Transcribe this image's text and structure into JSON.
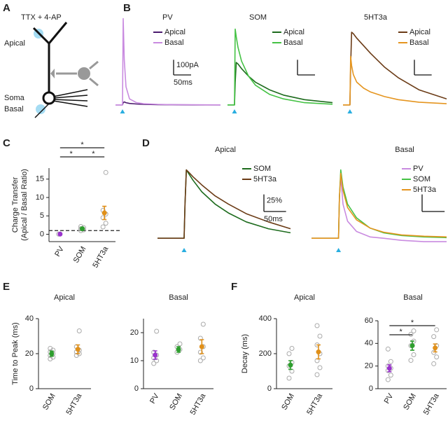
{
  "panel_labels": [
    "A",
    "B",
    "C",
    "D",
    "E",
    "F"
  ],
  "diagram": {
    "title": "TTX + 4-AP",
    "labels": [
      "Apical",
      "Soma",
      "Basal"
    ]
  },
  "chart_data": [
    {
      "type": "line",
      "title": "PV",
      "title_color": "#9933cc",
      "x": [
        0,
        10,
        18,
        20,
        22,
        25,
        30,
        40,
        60,
        80,
        120,
        160,
        220,
        300
      ],
      "series": [
        {
          "name": "Apical",
          "color": "#4b1a6e",
          "values": [
            0,
            0,
            0,
            0,
            15,
            20,
            15,
            10,
            6,
            4,
            2,
            1,
            0,
            0
          ]
        },
        {
          "name": "Basal",
          "color": "#c98be0",
          "values": [
            0,
            0,
            0,
            0,
            570,
            300,
            120,
            40,
            15,
            8,
            4,
            2,
            1,
            0
          ]
        }
      ],
      "xlim": [
        0,
        300
      ],
      "ylim": [
        -10,
        600
      ],
      "stimulus": 20,
      "scalebar": {
        "x": 50,
        "x_label": "50ms",
        "y": 100,
        "y_label": "100pA"
      }
    },
    {
      "type": "line",
      "title": "SOM",
      "title_color": "#2e9e2e",
      "x": [
        0,
        10,
        18,
        20,
        22,
        25,
        30,
        40,
        60,
        80,
        120,
        160,
        220,
        300
      ],
      "series": [
        {
          "name": "Apical",
          "color": "#1d6b1d",
          "values": [
            0,
            0,
            0,
            0,
            150,
            280,
            270,
            240,
            190,
            150,
            100,
            65,
            35,
            15
          ]
        },
        {
          "name": "Basal",
          "color": "#44c244",
          "values": [
            0,
            0,
            0,
            0,
            500,
            450,
            380,
            290,
            190,
            130,
            70,
            40,
            15,
            5
          ]
        }
      ],
      "xlim": [
        0,
        300
      ],
      "ylim": [
        -10,
        600
      ],
      "stimulus": 20,
      "scalebar": {
        "x": 50,
        "y": 100
      }
    },
    {
      "type": "line",
      "title": "5HT3a",
      "title_color": "#e0901a",
      "x": [
        0,
        10,
        18,
        20,
        22,
        25,
        30,
        40,
        60,
        80,
        120,
        160,
        220,
        300
      ],
      "series": [
        {
          "name": "Apical",
          "color": "#6b3b16",
          "values": [
            0,
            0,
            0,
            0,
            250,
            480,
            470,
            440,
            390,
            340,
            250,
            180,
            100,
            40
          ]
        },
        {
          "name": "Basal",
          "color": "#e5951f",
          "values": [
            0,
            0,
            0,
            0,
            320,
            260,
            200,
            150,
            110,
            85,
            55,
            35,
            18,
            8
          ]
        }
      ],
      "xlim": [
        0,
        300
      ],
      "ylim": [
        -10,
        600
      ],
      "stimulus": 20,
      "scalebar": {
        "x": 50,
        "y": 100
      }
    },
    {
      "type": "line",
      "title": "Apical",
      "x": [
        0,
        40,
        60,
        62,
        65,
        70,
        80,
        100,
        130,
        160,
        200,
        250,
        300
      ],
      "series": [
        {
          "name": "SOM",
          "color": "#1d6b1d",
          "values": [
            0,
            0,
            0,
            50,
            100,
            95,
            85,
            68,
            50,
            37,
            24,
            14,
            8
          ]
        },
        {
          "name": "5HT3a",
          "color": "#6b3b16",
          "values": [
            0,
            0,
            0,
            50,
            100,
            97,
            90,
            78,
            62,
            50,
            36,
            24,
            14
          ]
        }
      ],
      "xlim": [
        0,
        300
      ],
      "ylim": [
        -10,
        115
      ],
      "stimulus": 60,
      "scalebar": {
        "x": 50,
        "x_label": "50ms",
        "y": 25,
        "y_label": "25%"
      }
    },
    {
      "type": "line",
      "title": "Basal",
      "x": [
        0,
        40,
        60,
        62,
        65,
        70,
        80,
        100,
        130,
        160,
        200,
        250,
        300
      ],
      "series": [
        {
          "name": "PV",
          "color": "#c98be0",
          "values": [
            0,
            0,
            0,
            60,
            90,
            50,
            25,
            10,
            2,
            0,
            -3,
            -5,
            -5
          ]
        },
        {
          "name": "SOM",
          "color": "#44c244",
          "values": [
            0,
            0,
            0,
            60,
            100,
            75,
            50,
            30,
            15,
            8,
            4,
            2,
            1
          ]
        },
        {
          "name": "5HT3a",
          "color": "#e5951f",
          "values": [
            0,
            0,
            0,
            60,
            95,
            70,
            45,
            27,
            15,
            9,
            5,
            3,
            2
          ]
        }
      ],
      "xlim": [
        0,
        300
      ],
      "ylim": [
        -10,
        115
      ],
      "stimulus": 60,
      "scalebar": {
        "x": 50,
        "y": 25
      }
    },
    {
      "type": "dot",
      "ylabel": [
        "Charge Transfer",
        "(Apical / Basal Ratio)"
      ],
      "categories": [
        "PV",
        "SOM",
        "5HT3a"
      ],
      "category_colors": [
        "#9933cc",
        "#2e9e2e",
        "#e0901a"
      ],
      "values": [
        0.05,
        1.5,
        5.8
      ],
      "errors": [
        0.05,
        0.4,
        1.8
      ],
      "points": [
        [
          0.05
        ],
        [
          1.0,
          1.2,
          1.5,
          1.8,
          2.1
        ],
        [
          2.0,
          3.0,
          4.5,
          5.5,
          6.5,
          16.8
        ]
      ],
      "reference_line": 1,
      "ylim": [
        -2,
        18
      ],
      "yticks": [
        0,
        5,
        10,
        15
      ],
      "comparisons": [
        {
          "from": "PV",
          "to": "5HT3a",
          "label": "*"
        },
        {
          "from": "PV",
          "to": "SOM",
          "label": "*"
        },
        {
          "from": "SOM",
          "to": "5HT3a",
          "label": "*"
        }
      ]
    },
    {
      "type": "dot",
      "title": "Apical",
      "ylabel": "Time to Peak (ms)",
      "categories": [
        "SOM",
        "5HT3a"
      ],
      "category_colors": [
        "#2e9e2e",
        "#e0901a"
      ],
      "values": [
        20,
        22.5
      ],
      "errors": [
        1.5,
        2.5
      ],
      "points": [
        [
          17,
          18,
          19,
          20,
          21,
          22,
          23
        ],
        [
          19,
          20,
          21,
          22,
          24,
          33
        ]
      ],
      "ylim": [
        0,
        40
      ],
      "yticks": [
        0,
        20,
        40
      ]
    },
    {
      "type": "dot",
      "title": "Basal",
      "categories": [
        "PV",
        "SOM",
        "5HT3a"
      ],
      "category_colors": [
        "#9933cc",
        "#2e9e2e",
        "#e0901a"
      ],
      "values": [
        12,
        14,
        15
      ],
      "errors": [
        1.5,
        1,
        2.5
      ],
      "points": [
        [
          9,
          10,
          11,
          12,
          13,
          20.5
        ],
        [
          13,
          14,
          15,
          16
        ],
        [
          10,
          11,
          13,
          15,
          18,
          23
        ]
      ],
      "ylim": [
        0,
        25
      ],
      "yticks": [
        0,
        10,
        20
      ]
    },
    {
      "type": "dot",
      "title": "Apical",
      "ylabel": "Decay (ms)",
      "categories": [
        "SOM",
        "5HT3a"
      ],
      "category_colors": [
        "#2e9e2e",
        "#e0901a"
      ],
      "values": [
        135,
        210
      ],
      "errors": [
        25,
        40
      ],
      "points": [
        [
          60,
          100,
          130,
          150,
          200,
          230
        ],
        [
          80,
          120,
          160,
          200,
          250,
          300,
          360
        ]
      ],
      "ylim": [
        0,
        400
      ],
      "yticks": [
        0,
        200,
        400
      ]
    },
    {
      "type": "dot",
      "title": "Basal",
      "categories": [
        "PV",
        "SOM",
        "5HT3a"
      ],
      "category_colors": [
        "#9933cc",
        "#2e9e2e",
        "#e0901a"
      ],
      "values": [
        18,
        38,
        36
      ],
      "errors": [
        3,
        4,
        3.5
      ],
      "points": [
        [
          8,
          12,
          16,
          18,
          20,
          24,
          35
        ],
        [
          25,
          30,
          38,
          42,
          48,
          51
        ],
        [
          22,
          28,
          32,
          38,
          46,
          52
        ]
      ],
      "ylim": [
        0,
        60
      ],
      "yticks": [
        0,
        20,
        40,
        60
      ],
      "comparisons": [
        {
          "from": "PV",
          "to": "SOM",
          "label": "*"
        },
        {
          "from": "PV",
          "to": "5HT3a",
          "label": "*"
        }
      ]
    }
  ]
}
